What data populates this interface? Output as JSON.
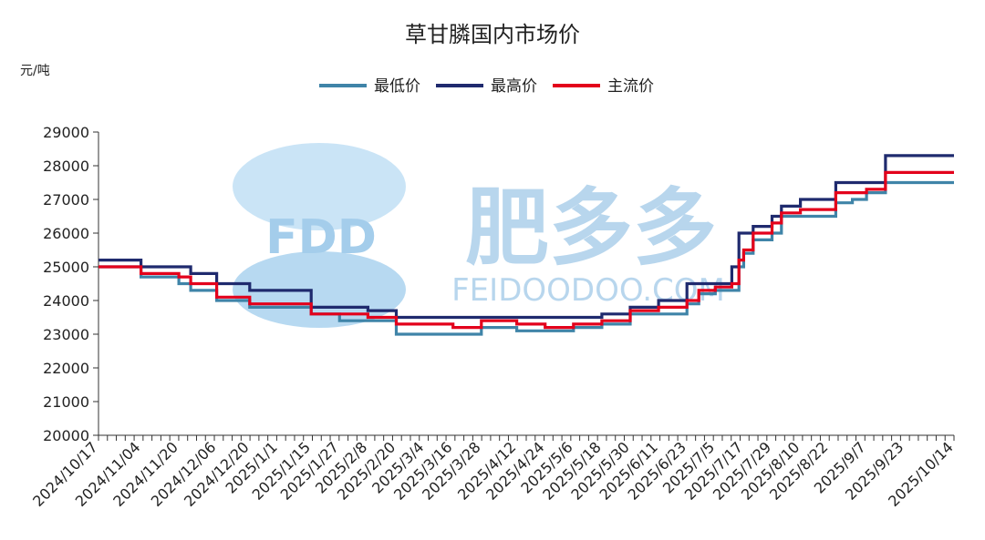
{
  "chart_data": {
    "type": "line",
    "title": "草甘膦国内市场价",
    "ylabel": "元/吨",
    "ylim": [
      20000,
      29000
    ],
    "yticks": [
      20000,
      21000,
      22000,
      23000,
      24000,
      25000,
      26000,
      27000,
      28000,
      29000
    ],
    "grid": false,
    "legend_position": "top",
    "x_start": "2024/10/17",
    "x_end": "2025/10/14",
    "xticks": [
      "2024/10/17",
      "2024/11/04",
      "2024/11/20",
      "2024/12/06",
      "2024/12/20",
      "2025/1/1",
      "2025/1/15",
      "2025/1/27",
      "2025/2/8",
      "2025/2/20",
      "2025/3/4",
      "2025/3/16",
      "2025/3/28",
      "2025/4/12",
      "2025/4/24",
      "2025/5/6",
      "2025/5/18",
      "2025/5/30",
      "2025/6/11",
      "2025/6/23",
      "2025/7/5",
      "2025/7/17",
      "2025/7/29",
      "2025/8/10",
      "2025/8/22",
      "2025/9/7",
      "2025/9/23",
      "2025/10/14"
    ],
    "series": [
      {
        "name": "最低价",
        "color": "#3f84a8",
        "points": [
          [
            "2024/10/17",
            25000
          ],
          [
            "2024/11/04",
            24700
          ],
          [
            "2024/11/20",
            24500
          ],
          [
            "2024/11/25",
            24300
          ],
          [
            "2024/12/06",
            24000
          ],
          [
            "2024/12/20",
            23800
          ],
          [
            "2025/1/1",
            23800
          ],
          [
            "2025/1/15",
            23600
          ],
          [
            "2025/1/27",
            23400
          ],
          [
            "2025/2/8",
            23400
          ],
          [
            "2025/2/20",
            23000
          ],
          [
            "2025/3/4",
            23000
          ],
          [
            "2025/3/16",
            23000
          ],
          [
            "2025/3/28",
            23200
          ],
          [
            "2025/4/12",
            23100
          ],
          [
            "2025/4/24",
            23100
          ],
          [
            "2025/5/6",
            23200
          ],
          [
            "2025/5/18",
            23300
          ],
          [
            "2025/5/30",
            23600
          ],
          [
            "2025/6/11",
            23600
          ],
          [
            "2025/6/23",
            23900
          ],
          [
            "2025/6/28",
            24200
          ],
          [
            "2025/7/5",
            24300
          ],
          [
            "2025/7/12",
            24300
          ],
          [
            "2025/7/15",
            25000
          ],
          [
            "2025/7/17",
            25400
          ],
          [
            "2025/7/21",
            25800
          ],
          [
            "2025/7/29",
            26000
          ],
          [
            "2025/8/2",
            26500
          ],
          [
            "2025/8/10",
            26500
          ],
          [
            "2025/8/22",
            26500
          ],
          [
            "2025/8/25",
            26900
          ],
          [
            "2025/9/1",
            27000
          ],
          [
            "2025/9/7",
            27200
          ],
          [
            "2025/9/15",
            27500
          ],
          [
            "2025/10/14",
            27500
          ]
        ]
      },
      {
        "name": "最高价",
        "color": "#1f2a6e",
        "points": [
          [
            "2024/10/17",
            25200
          ],
          [
            "2024/11/04",
            25000
          ],
          [
            "2024/11/20",
            25000
          ],
          [
            "2024/11/25",
            24800
          ],
          [
            "2024/12/06",
            24500
          ],
          [
            "2024/12/20",
            24300
          ],
          [
            "2025/1/1",
            24300
          ],
          [
            "2025/1/15",
            23800
          ],
          [
            "2025/1/27",
            23800
          ],
          [
            "2025/2/8",
            23700
          ],
          [
            "2025/2/20",
            23500
          ],
          [
            "2025/3/4",
            23500
          ],
          [
            "2025/3/16",
            23500
          ],
          [
            "2025/3/28",
            23500
          ],
          [
            "2025/4/12",
            23500
          ],
          [
            "2025/4/24",
            23500
          ],
          [
            "2025/5/6",
            23500
          ],
          [
            "2025/5/18",
            23600
          ],
          [
            "2025/5/30",
            23800
          ],
          [
            "2025/6/11",
            24000
          ],
          [
            "2025/6/23",
            24500
          ],
          [
            "2025/7/5",
            24500
          ],
          [
            "2025/7/12",
            25000
          ],
          [
            "2025/7/15",
            26000
          ],
          [
            "2025/7/21",
            26200
          ],
          [
            "2025/7/29",
            26500
          ],
          [
            "2025/8/2",
            26800
          ],
          [
            "2025/8/10",
            27000
          ],
          [
            "2025/8/22",
            27000
          ],
          [
            "2025/8/25",
            27500
          ],
          [
            "2025/9/7",
            27500
          ],
          [
            "2025/9/15",
            28300
          ],
          [
            "2025/10/14",
            28300
          ]
        ]
      },
      {
        "name": "主流价",
        "color": "#e3001b",
        "points": [
          [
            "2024/10/17",
            25000
          ],
          [
            "2024/11/04",
            24800
          ],
          [
            "2024/11/20",
            24700
          ],
          [
            "2024/11/25",
            24500
          ],
          [
            "2024/12/06",
            24100
          ],
          [
            "2024/12/20",
            23900
          ],
          [
            "2025/1/1",
            23900
          ],
          [
            "2025/1/15",
            23600
          ],
          [
            "2025/1/27",
            23600
          ],
          [
            "2025/2/8",
            23500
          ],
          [
            "2025/2/20",
            23300
          ],
          [
            "2025/3/4",
            23300
          ],
          [
            "2025/3/16",
            23200
          ],
          [
            "2025/3/28",
            23400
          ],
          [
            "2025/4/12",
            23300
          ],
          [
            "2025/4/24",
            23200
          ],
          [
            "2025/5/6",
            23300
          ],
          [
            "2025/5/18",
            23400
          ],
          [
            "2025/5/30",
            23700
          ],
          [
            "2025/6/11",
            23800
          ],
          [
            "2025/6/23",
            24000
          ],
          [
            "2025/6/28",
            24300
          ],
          [
            "2025/7/5",
            24400
          ],
          [
            "2025/7/12",
            24500
          ],
          [
            "2025/7/15",
            25200
          ],
          [
            "2025/7/17",
            25500
          ],
          [
            "2025/7/21",
            26000
          ],
          [
            "2025/7/29",
            26300
          ],
          [
            "2025/8/2",
            26600
          ],
          [
            "2025/8/10",
            26700
          ],
          [
            "2025/8/22",
            26700
          ],
          [
            "2025/8/25",
            27200
          ],
          [
            "2025/9/7",
            27300
          ],
          [
            "2025/9/15",
            27800
          ],
          [
            "2025/10/14",
            27800
          ]
        ]
      }
    ]
  },
  "watermark": {
    "logo_text": "FDD",
    "brand": "肥多多",
    "site": "FEIDOODOO.COM",
    "color": "#8ec4e8"
  }
}
